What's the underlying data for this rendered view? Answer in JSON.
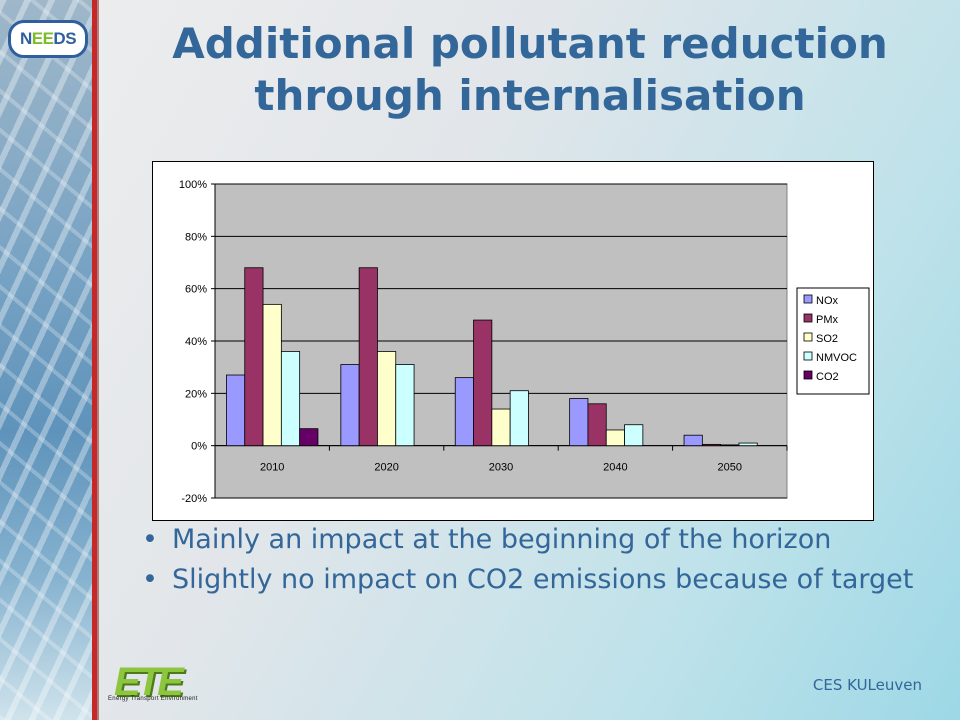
{
  "slide": {
    "title": "Additional pollutant reduction through internalisation",
    "bullets": [
      "Mainly an impact at the beginning of the horizon",
      "Slightly no impact on CO2 emissions because of target"
    ],
    "footer": "CES KULeuven",
    "logo_top": "NEEDS",
    "logo_bottom_letters": "ETE",
    "logo_bottom_sub": "Energy Transport Environment"
  },
  "colors": {
    "title": "#336699",
    "accent_red": "#c62828",
    "plot_bg": "#c0c0c0"
  },
  "chart_data": {
    "type": "bar",
    "categories": [
      "2010",
      "2020",
      "2030",
      "2040",
      "2050"
    ],
    "series": [
      {
        "name": "NOx",
        "color": "#9999ff",
        "values": [
          27,
          31,
          26,
          18,
          4
        ]
      },
      {
        "name": "PMx",
        "color": "#993366",
        "values": [
          68,
          68,
          48,
          16,
          0.5
        ]
      },
      {
        "name": "SO2",
        "color": "#ffffcc",
        "values": [
          54,
          36,
          14,
          6,
          0.3
        ]
      },
      {
        "name": "NMVOC",
        "color": "#ccffff",
        "values": [
          36,
          31,
          21,
          8,
          1
        ]
      },
      {
        "name": "CO2",
        "color": "#660066",
        "values": [
          6.5,
          0,
          0,
          0,
          0
        ]
      }
    ],
    "ylim": [
      -20,
      100
    ],
    "yticks": [
      -20,
      0,
      20,
      40,
      60,
      80,
      100
    ],
    "ytick_format": "percent",
    "grid": true,
    "legend": "right",
    "xlabel": "",
    "ylabel": ""
  }
}
